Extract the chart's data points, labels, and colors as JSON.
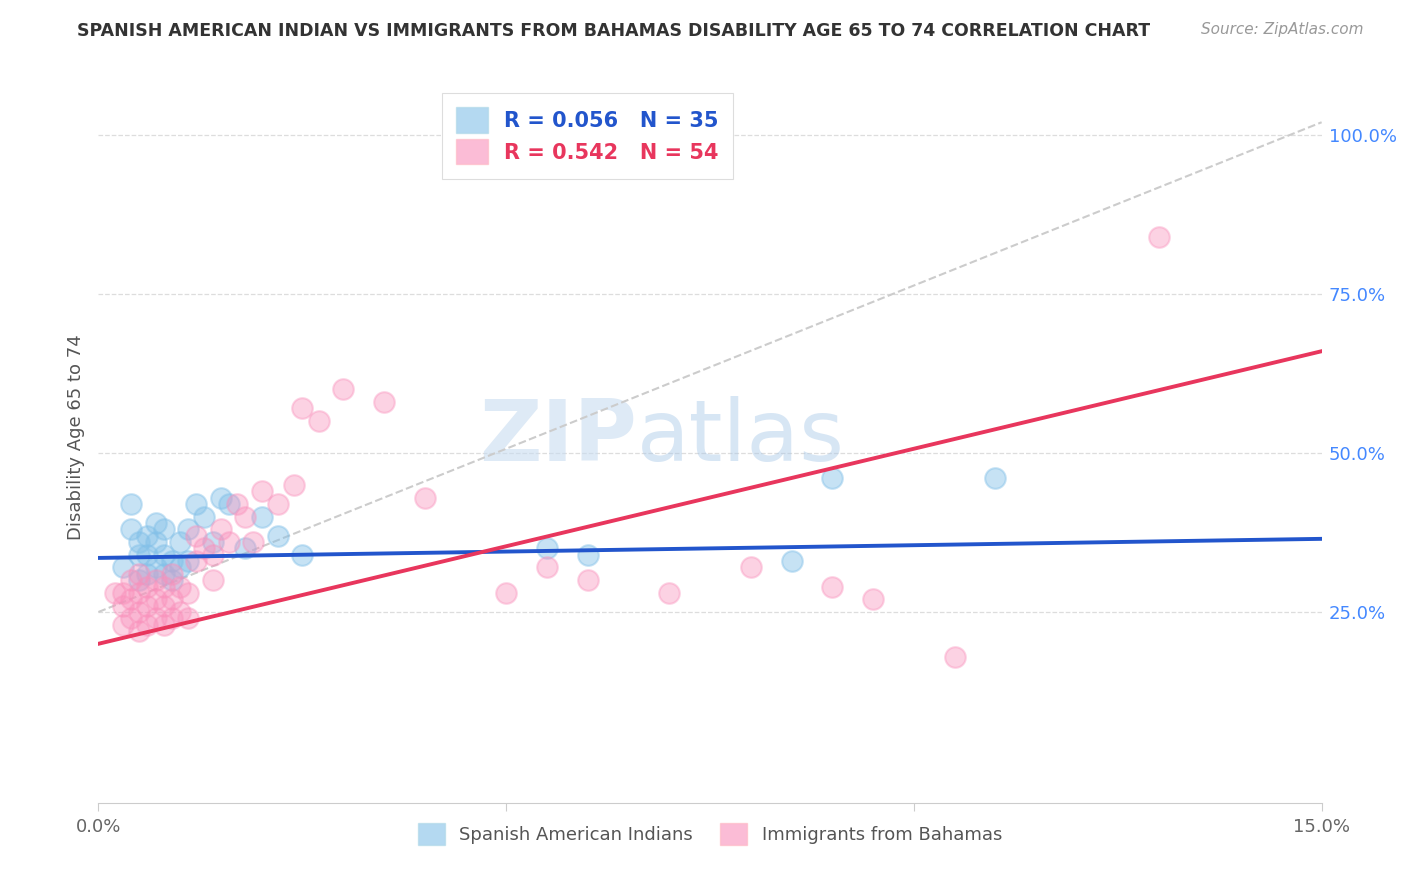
{
  "title": "SPANISH AMERICAN INDIAN VS IMMIGRANTS FROM BAHAMAS DISABILITY AGE 65 TO 74 CORRELATION CHART",
  "source": "Source: ZipAtlas.com",
  "ylabel": "Disability Age 65 to 74",
  "xlim": [
    0.0,
    0.15
  ],
  "ylim": [
    -0.05,
    1.1
  ],
  "xtick_vals": [
    0.0,
    0.05,
    0.1,
    0.15
  ],
  "xtick_labels": [
    "0.0%",
    "",
    "",
    "15.0%"
  ],
  "ytick_vals_right": [
    0.25,
    0.5,
    0.75,
    1.0
  ],
  "ytick_labels_right": [
    "25.0%",
    "50.0%",
    "75.0%",
    "100.0%"
  ],
  "R_blue": 0.056,
  "N_blue": 35,
  "R_pink": 0.542,
  "N_pink": 54,
  "blue_scatter_color": "#82c0e8",
  "pink_scatter_color": "#f990bb",
  "blue_line_color": "#2255cc",
  "pink_line_color": "#e8365d",
  "dashed_line_color": "#cccccc",
  "legend_label_blue": "Spanish American Indians",
  "legend_label_pink": "Immigrants from Bahamas",
  "watermark_zip": "ZIP",
  "watermark_atlas": "atlas",
  "blue_scatter_x": [
    0.003,
    0.004,
    0.004,
    0.005,
    0.005,
    0.005,
    0.006,
    0.006,
    0.006,
    0.007,
    0.007,
    0.007,
    0.008,
    0.008,
    0.008,
    0.009,
    0.009,
    0.01,
    0.01,
    0.011,
    0.011,
    0.012,
    0.013,
    0.014,
    0.015,
    0.016,
    0.018,
    0.02,
    0.022,
    0.025,
    0.055,
    0.06,
    0.085,
    0.09,
    0.11
  ],
  "blue_scatter_y": [
    0.32,
    0.38,
    0.42,
    0.3,
    0.34,
    0.36,
    0.31,
    0.34,
    0.37,
    0.32,
    0.36,
    0.39,
    0.31,
    0.34,
    0.38,
    0.3,
    0.33,
    0.32,
    0.36,
    0.33,
    0.38,
    0.42,
    0.4,
    0.36,
    0.43,
    0.42,
    0.35,
    0.4,
    0.37,
    0.34,
    0.35,
    0.34,
    0.33,
    0.46,
    0.46
  ],
  "pink_scatter_x": [
    0.002,
    0.003,
    0.003,
    0.003,
    0.004,
    0.004,
    0.004,
    0.005,
    0.005,
    0.005,
    0.005,
    0.006,
    0.006,
    0.006,
    0.007,
    0.007,
    0.007,
    0.008,
    0.008,
    0.008,
    0.009,
    0.009,
    0.009,
    0.01,
    0.01,
    0.011,
    0.011,
    0.012,
    0.012,
    0.013,
    0.014,
    0.014,
    0.015,
    0.016,
    0.017,
    0.018,
    0.019,
    0.02,
    0.022,
    0.024,
    0.025,
    0.027,
    0.03,
    0.035,
    0.04,
    0.05,
    0.055,
    0.06,
    0.07,
    0.08,
    0.09,
    0.095,
    0.105,
    0.13
  ],
  "pink_scatter_y": [
    0.28,
    0.23,
    0.26,
    0.28,
    0.24,
    0.27,
    0.3,
    0.22,
    0.25,
    0.28,
    0.31,
    0.23,
    0.26,
    0.29,
    0.24,
    0.27,
    0.3,
    0.23,
    0.26,
    0.29,
    0.24,
    0.27,
    0.31,
    0.25,
    0.29,
    0.24,
    0.28,
    0.33,
    0.37,
    0.35,
    0.3,
    0.34,
    0.38,
    0.36,
    0.42,
    0.4,
    0.36,
    0.44,
    0.42,
    0.45,
    0.57,
    0.55,
    0.6,
    0.58,
    0.43,
    0.28,
    0.32,
    0.3,
    0.28,
    0.32,
    0.29,
    0.27,
    0.18,
    0.84
  ],
  "blue_line_x0": 0.0,
  "blue_line_y0": 0.335,
  "blue_line_x1": 0.15,
  "blue_line_y1": 0.365,
  "pink_line_x0": 0.0,
  "pink_line_y0": 0.2,
  "pink_line_x1": 0.15,
  "pink_line_y1": 0.66,
  "dashed_line_x0": 0.0,
  "dashed_line_y0": 0.25,
  "dashed_line_x1": 0.15,
  "dashed_line_y1": 1.02
}
